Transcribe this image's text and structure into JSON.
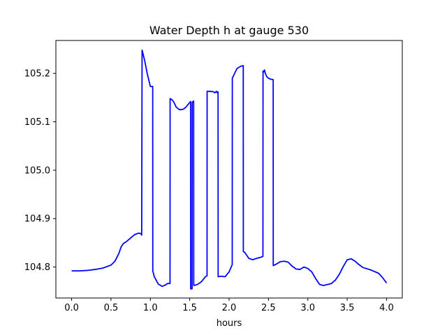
{
  "chart_data": {
    "type": "line",
    "title": "Water Depth h at gauge 530",
    "xlabel": "hours",
    "ylabel": "",
    "xlim": [
      -0.2,
      4.2
    ],
    "ylim": [
      104.736,
      105.268
    ],
    "grid": false,
    "legend": "none",
    "xticks": [
      0.0,
      0.5,
      1.0,
      1.5,
      2.0,
      2.5,
      3.0,
      3.5,
      4.0
    ],
    "xtick_labels": [
      "0.0",
      "0.5",
      "1.0",
      "1.5",
      "2.0",
      "2.5",
      "3.0",
      "3.5",
      "4.0"
    ],
    "yticks": [
      104.8,
      104.9,
      105.0,
      105.1,
      105.2
    ],
    "ytick_labels": [
      "104.8",
      "104.9",
      "105.0",
      "105.1",
      "105.2"
    ],
    "series": [
      {
        "color": "#0000ff",
        "x": [
          0.0,
          0.1,
          0.2,
          0.3,
          0.4,
          0.5,
          0.55,
          0.6,
          0.63,
          0.66,
          0.7,
          0.75,
          0.8,
          0.85,
          0.88,
          0.89,
          0.895,
          0.9,
          0.93,
          0.96,
          1.0,
          1.03,
          1.031,
          1.05,
          1.1,
          1.15,
          1.18,
          1.22,
          1.25,
          1.251,
          1.28,
          1.3,
          1.33,
          1.37,
          1.42,
          1.45,
          1.5,
          1.511,
          1.512,
          1.53,
          1.531,
          1.55,
          1.551,
          1.6,
          1.65,
          1.7,
          1.72,
          1.721,
          1.75,
          1.8,
          1.82,
          1.84,
          1.85,
          1.86,
          1.861,
          1.9,
          1.95,
          2.0,
          2.04,
          2.041,
          2.1,
          2.15,
          2.18,
          2.181,
          2.2,
          2.25,
          2.3,
          2.35,
          2.4,
          2.43,
          2.431,
          2.44,
          2.45,
          2.46,
          2.48,
          2.5,
          2.53,
          2.56,
          2.561,
          2.6,
          2.65,
          2.7,
          2.75,
          2.8,
          2.85,
          2.9,
          2.95,
          3.0,
          3.05,
          3.1,
          3.15,
          3.2,
          3.25,
          3.3,
          3.35,
          3.4,
          3.45,
          3.5,
          3.55,
          3.6,
          3.65,
          3.7,
          3.8,
          3.9,
          3.95,
          4.0
        ],
        "y": [
          104.792,
          104.792,
          104.793,
          104.795,
          104.798,
          104.804,
          104.812,
          104.828,
          104.842,
          104.849,
          104.853,
          104.86,
          104.867,
          104.87,
          104.869,
          104.866,
          105.248,
          105.245,
          105.225,
          105.2,
          105.173,
          105.173,
          104.792,
          104.78,
          104.765,
          104.76,
          104.762,
          104.766,
          104.766,
          105.148,
          105.145,
          105.14,
          105.13,
          105.125,
          105.126,
          105.13,
          105.14,
          105.142,
          104.755,
          104.755,
          105.14,
          105.143,
          104.762,
          104.764,
          104.77,
          104.78,
          104.782,
          105.163,
          105.163,
          105.162,
          105.16,
          105.163,
          105.16,
          105.162,
          104.78,
          104.781,
          104.78,
          104.79,
          104.805,
          105.19,
          105.21,
          105.215,
          105.216,
          104.832,
          104.83,
          104.818,
          104.815,
          104.818,
          104.82,
          104.822,
          105.205,
          105.203,
          105.207,
          105.2,
          105.193,
          105.19,
          105.188,
          105.187,
          104.803,
          104.806,
          104.811,
          104.812,
          104.81,
          104.802,
          104.796,
          104.795,
          104.8,
          104.797,
          104.79,
          104.776,
          104.764,
          104.762,
          104.764,
          104.766,
          104.773,
          104.785,
          104.801,
          104.815,
          104.817,
          104.812,
          104.805,
          104.799,
          104.794,
          104.787,
          104.778,
          104.767
        ]
      }
    ]
  }
}
